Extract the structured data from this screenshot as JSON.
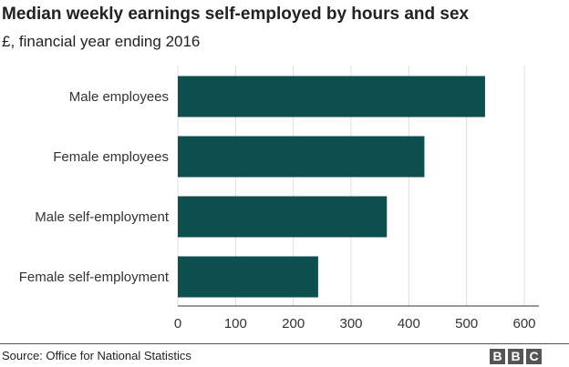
{
  "title": "Median weekly earnings self-employed by hours and sex",
  "subtitle": "£, financial year ending 2016",
  "source": "Source: Office for National Statistics",
  "logo": [
    "B",
    "B",
    "C"
  ],
  "colors": {
    "bar": "#0d4f4f",
    "grid": "#dddddd",
    "axis": "#333333"
  },
  "chart_data": {
    "type": "bar",
    "orientation": "horizontal",
    "categories": [
      "Male employees",
      "Female employees",
      "Male self-employment",
      "Female self-employment"
    ],
    "values": [
      532,
      427,
      362,
      243
    ],
    "xlim": [
      0,
      620
    ],
    "xticks": [
      0,
      100,
      200,
      300,
      400,
      500,
      600
    ],
    "xlabel": "",
    "ylabel": "",
    "grid": true,
    "legend": "none"
  }
}
